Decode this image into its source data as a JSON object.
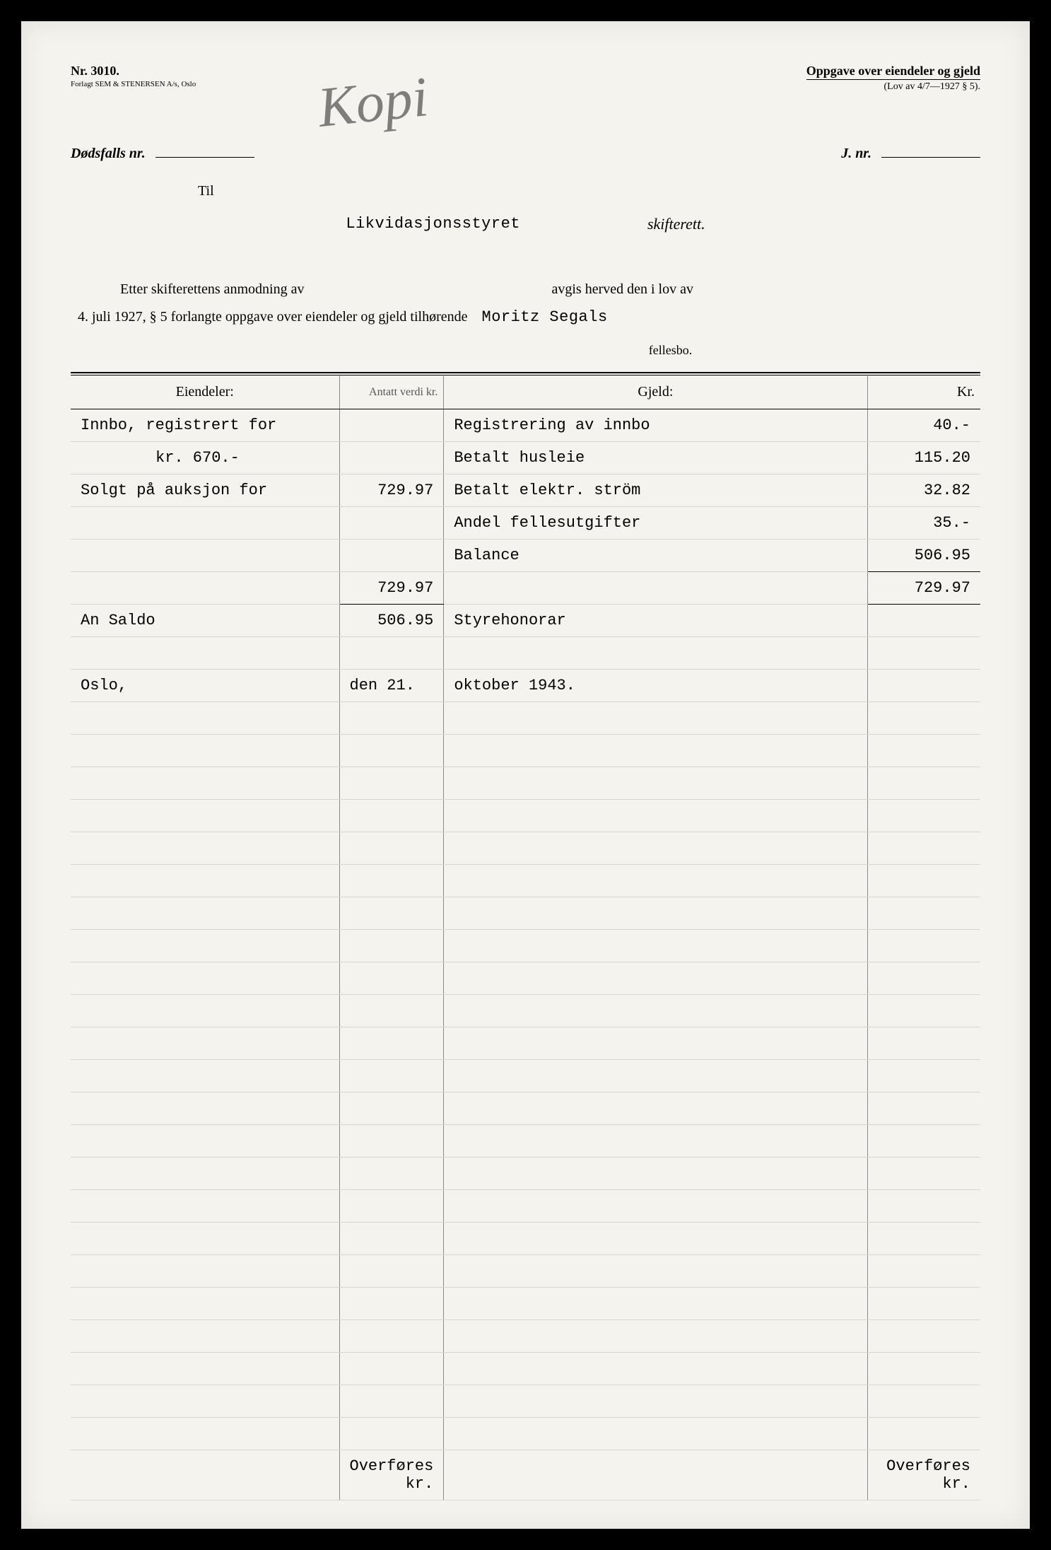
{
  "form": {
    "number": "Nr. 3010.",
    "publisher": "Forlagt SEM & STENERSEN A/s, Oslo",
    "title": "Oppgave over eiendeler og gjeld",
    "law_ref": "(Lov av 4/7—1927 § 5).",
    "watermark": "Kopi"
  },
  "fields": {
    "dodsfalls_nr_label": "Dødsfalls nr.",
    "j_nr_label": "J. nr.",
    "til": "Til",
    "likvidasjon": "Likvidasjonsstyret",
    "skifterett": "skifterett."
  },
  "body": {
    "line1_a": "Etter skifterettens anmodning av",
    "line1_b": "avgis herved den i lov av",
    "line2_a": "4. juli 1927, § 5 forlangte oppgave over eiendeler og gjeld tilhørende",
    "name": "Moritz Segals",
    "fellesbo": "fellesbo."
  },
  "table": {
    "headers": {
      "assets": "Eiendeler:",
      "antatt": "Antatt verdi kr.",
      "debts": "Gjeld:",
      "kr": "Kr."
    },
    "rows": [
      {
        "assets": "Innbo, registrert for",
        "av": "",
        "debts": "Registrering av innbo",
        "kr": "40.-"
      },
      {
        "assets_indent": true,
        "assets": "kr. 670.-",
        "av": "",
        "debts": "Betalt husleie",
        "kr": "115.20"
      },
      {
        "assets": "Solgt på auksjon for",
        "av": "729.97",
        "debts": "Betalt elektr. ström",
        "kr": "32.82"
      },
      {
        "assets": "",
        "av": "",
        "debts": "Andel fellesutgifter",
        "kr": "35.-"
      },
      {
        "assets": "",
        "av": "",
        "debts": "Balance",
        "kr": "506.95",
        "kr_underline": true
      },
      {
        "assets": "",
        "av": "729.97",
        "av_underline": true,
        "debts": "",
        "kr": "729.97",
        "kr_underline": true
      },
      {
        "assets": "An Saldo",
        "av": "506.95",
        "debts": " Styrehonorar",
        "kr": ""
      },
      {
        "assets": "",
        "av": "",
        "debts": "",
        "kr": ""
      },
      {
        "date_row": true,
        "date": "Oslo, den 21. oktober 1943."
      }
    ],
    "blank_rows": 23,
    "footer": "Overføres kr."
  }
}
